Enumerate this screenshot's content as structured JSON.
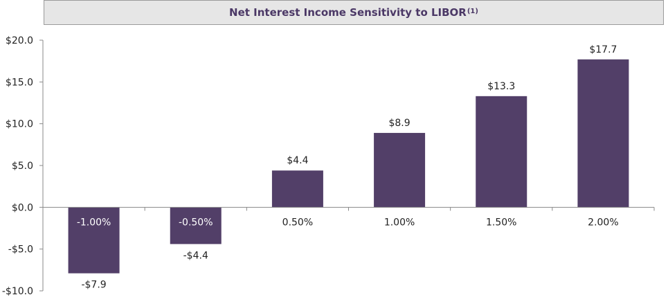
{
  "chart_data": {
    "type": "bar",
    "title": "Net Interest Income Sensitivity to LIBOR",
    "title_footnote": "(1)",
    "categories": [
      "-1.00%",
      "-0.50%",
      "0.50%",
      "1.00%",
      "1.50%",
      "2.00%"
    ],
    "values": [
      -7.9,
      -4.4,
      4.4,
      8.9,
      13.3,
      17.7
    ],
    "data_labels": [
      "-$7.9",
      "-$4.4",
      "$4.4",
      "$8.9",
      "$13.3",
      "$17.7"
    ],
    "ylim": [
      -10,
      20
    ],
    "yticks": [
      20,
      15,
      10,
      5,
      0,
      -5,
      -10
    ],
    "ytick_labels": [
      "$20.0",
      "$15.0",
      "$10.0",
      "$5.0",
      "$0.0",
      "-$5.0",
      "-$10.0"
    ],
    "xlabel": "",
    "ylabel": "",
    "grid": false,
    "bar_color": "#523f68"
  }
}
